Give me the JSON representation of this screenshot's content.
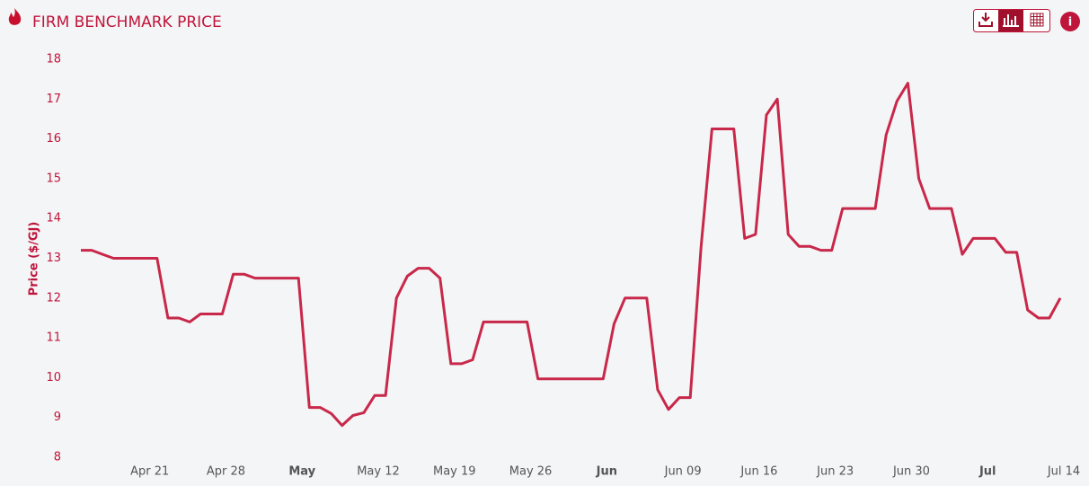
{
  "chart_data": {
    "type": "line",
    "title": "FIRM BENCHMARK PRICE",
    "y_label": "Price ($/GJ)",
    "categories": [
      null,
      null,
      null,
      null,
      null,
      null,
      "Apr 21",
      null,
      null,
      null,
      null,
      null,
      null,
      "Apr 28",
      null,
      null,
      null,
      null,
      null,
      null,
      "May",
      null,
      null,
      null,
      null,
      null,
      null,
      "May 12",
      null,
      null,
      null,
      null,
      null,
      null,
      "May 19",
      null,
      null,
      null,
      null,
      null,
      null,
      "May 26",
      null,
      null,
      null,
      null,
      null,
      null,
      "Jun",
      null,
      null,
      null,
      null,
      null,
      null,
      "Jun 09",
      null,
      null,
      null,
      null,
      null,
      null,
      "Jun 16",
      null,
      null,
      null,
      null,
      null,
      null,
      "Jun 23",
      null,
      null,
      null,
      null,
      null,
      null,
      "Jun 30",
      null,
      null,
      null,
      null,
      null,
      null,
      "Jul",
      null,
      null,
      null,
      null,
      null,
      null,
      "Jul 14"
    ],
    "values": [
      13.2,
      13.2,
      13.1,
      13.0,
      13.0,
      13.0,
      13.0,
      13.0,
      11.5,
      11.5,
      11.4,
      11.6,
      11.6,
      11.6,
      12.6,
      12.6,
      12.5,
      12.5,
      12.5,
      12.5,
      12.5,
      9.25,
      9.25,
      9.1,
      8.8,
      9.05,
      9.12,
      9.55,
      9.55,
      12.0,
      12.55,
      12.75,
      12.75,
      12.5,
      10.35,
      10.35,
      10.45,
      11.4,
      11.4,
      11.4,
      11.4,
      11.4,
      9.97,
      9.97,
      9.97,
      9.97,
      9.97,
      9.97,
      9.97,
      11.35,
      12.0,
      12.0,
      12.0,
      9.7,
      9.2,
      9.5,
      9.5,
      13.3,
      16.25,
      16.25,
      16.25,
      13.5,
      13.6,
      16.6,
      17.0,
      13.6,
      13.3,
      13.3,
      13.2,
      13.2,
      14.25,
      14.25,
      14.25,
      14.25,
      16.1,
      16.95,
      17.4,
      15.0,
      14.25,
      14.25,
      14.25,
      13.1,
      13.5,
      13.5,
      13.5,
      13.15,
      13.15,
      11.7,
      11.5,
      11.5,
      12.0
    ],
    "color": "#c8284a",
    "ylim": [
      8,
      18
    ],
    "yticks": [
      8,
      9,
      10,
      11,
      12,
      13,
      14,
      15,
      16,
      17,
      18
    ],
    "grid": false
  }
}
